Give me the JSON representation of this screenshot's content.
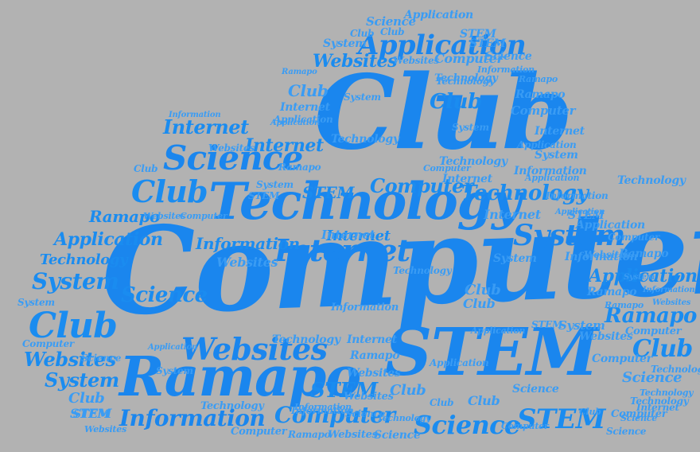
{
  "colors": {
    "background": "#b2b2b2",
    "word": "#1a8cf0"
  },
  "words": {
    "computer_big": "Computer",
    "club_big": "Club",
    "technology_big": "Technology",
    "stem_big": "STEM",
    "ramapo_big": "Ramapo",
    "science_big": "Science",
    "internet_big": "Internet",
    "application_big": "Application",
    "system_big": "System",
    "websites_big": "Websites",
    "information_big": "Information",
    "club_mid1": "Club",
    "club_mid2": "Club",
    "club_mid3": "Club",
    "club_mid4": "Club",
    "stem_mid1": "STEM",
    "stem_mid2": "STEM",
    "stem_mid3": "STEM",
    "computer_mid1": "Computer",
    "computer_mid2": "Computer",
    "science_mid1": "Science",
    "science_mid2": "Science",
    "system_mid1": "System",
    "system_mid2": "System",
    "ramapo_mid1": "Ramapo",
    "ramapo_mid2": "Ramapo",
    "internet_mid1": "Internet",
    "internet_mid2": "Internet",
    "internet_mid3": "Internet",
    "websites_mid1": "Websites",
    "websites_mid2": "Websites",
    "technology_mid1": "Technology",
    "technology_mid2": "Technology",
    "information_mid1": "Information",
    "application_mid1": "Application",
    "application_mid2": "Application",
    "small": [
      "Science",
      "Application",
      "System",
      "Club",
      "STEM",
      "Technology",
      "Websites",
      "Computer",
      "Science",
      "STEM",
      "Ramapo",
      "Information",
      "Club",
      "System",
      "Technology",
      "Ramapo",
      "Computer",
      "Internet",
      "Application",
      "Club",
      "Websites",
      "Internet",
      "Information",
      "Technology",
      "Websites",
      "Club",
      "Internet",
      "Ramapo",
      "Application",
      "Computer",
      "System",
      "Club",
      "Ramapo",
      "Websites",
      "Computer",
      "Information",
      "Technology",
      "STEM",
      "Application",
      "Technology",
      "Ramapo",
      "System",
      "Club",
      "Computer",
      "Application",
      "System",
      "Information",
      "Websites",
      "Science",
      "Internet",
      "Technology",
      "Computer",
      "Websites",
      "Ramapo",
      "STEM",
      "Science",
      "Information",
      "System",
      "Science",
      "Technology",
      "Application",
      "Club",
      "Websites",
      "Ramapo",
      "System",
      "Computer",
      "Science",
      "Club",
      "Information",
      "Application",
      "Technology",
      "STEM",
      "Internet",
      "Websites",
      "Science",
      "Club",
      "Computer",
      "System",
      "Ramapo",
      "Information",
      "Technology",
      "Websites",
      "Application",
      "Science",
      "Computer",
      "STEM",
      "Club",
      "Internet",
      "System",
      "Technology",
      "Websites",
      "Information",
      "Ramapo",
      "Computer",
      "Technology",
      "Science",
      "Websites",
      "Application",
      "Club",
      "STEM",
      "System",
      "Internet",
      "Computer",
      "Application",
      "Technology",
      "Information"
    ]
  }
}
